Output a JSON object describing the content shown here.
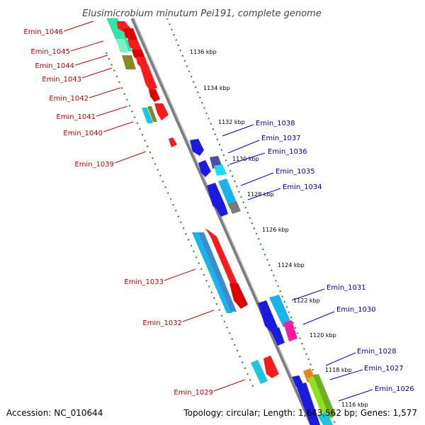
{
  "title": "Elusimicrobium minutum Pei191, complete genome",
  "footer": {
    "accession": "Accession: NC_010644",
    "summary": "Topology: circular; Length: 1,643,562 bp; Genes: 1,577"
  },
  "colors": {
    "backbone": "#8c8c8c",
    "tick_dots": "#2e8b2e",
    "forward_labels": "#cc0000",
    "reverse_labels": "#0000cc"
  },
  "ticks": [
    {
      "label": "1136 kbp"
    },
    {
      "label": "1134 kbp"
    },
    {
      "label": "1132 kbp"
    },
    {
      "label": "1130 kbp"
    },
    {
      "label": "1128 kbp"
    },
    {
      "label": "1126 kbp"
    },
    {
      "label": "1124 kbp"
    },
    {
      "label": "1122 kbp"
    },
    {
      "label": "1120 kbp"
    },
    {
      "label": "1118 kbp"
    },
    {
      "label": "1116 kbp"
    }
  ],
  "forward_labels": [
    {
      "text": "Emin_1046"
    },
    {
      "text": "Emin_1045"
    },
    {
      "text": "Emin_1044"
    },
    {
      "text": "Emin_1043"
    },
    {
      "text": "Emin_1042"
    },
    {
      "text": "Emin_1041"
    },
    {
      "text": "Emin_1040"
    },
    {
      "text": "Emin_1039"
    },
    {
      "text": "Emin_1033"
    },
    {
      "text": "Emin_1032"
    },
    {
      "text": "Emin_1029"
    }
  ],
  "reverse_labels": [
    {
      "text": "Emin_1038"
    },
    {
      "text": "Emin_1037"
    },
    {
      "text": "Emin_1036"
    },
    {
      "text": "Emin_1035"
    },
    {
      "text": "Emin_1034"
    },
    {
      "text": "Emin_1031"
    },
    {
      "text": "Emin_1030"
    },
    {
      "text": "Emin_1028"
    },
    {
      "text": "Emin_1027"
    },
    {
      "text": "Emin_1026"
    }
  ]
}
